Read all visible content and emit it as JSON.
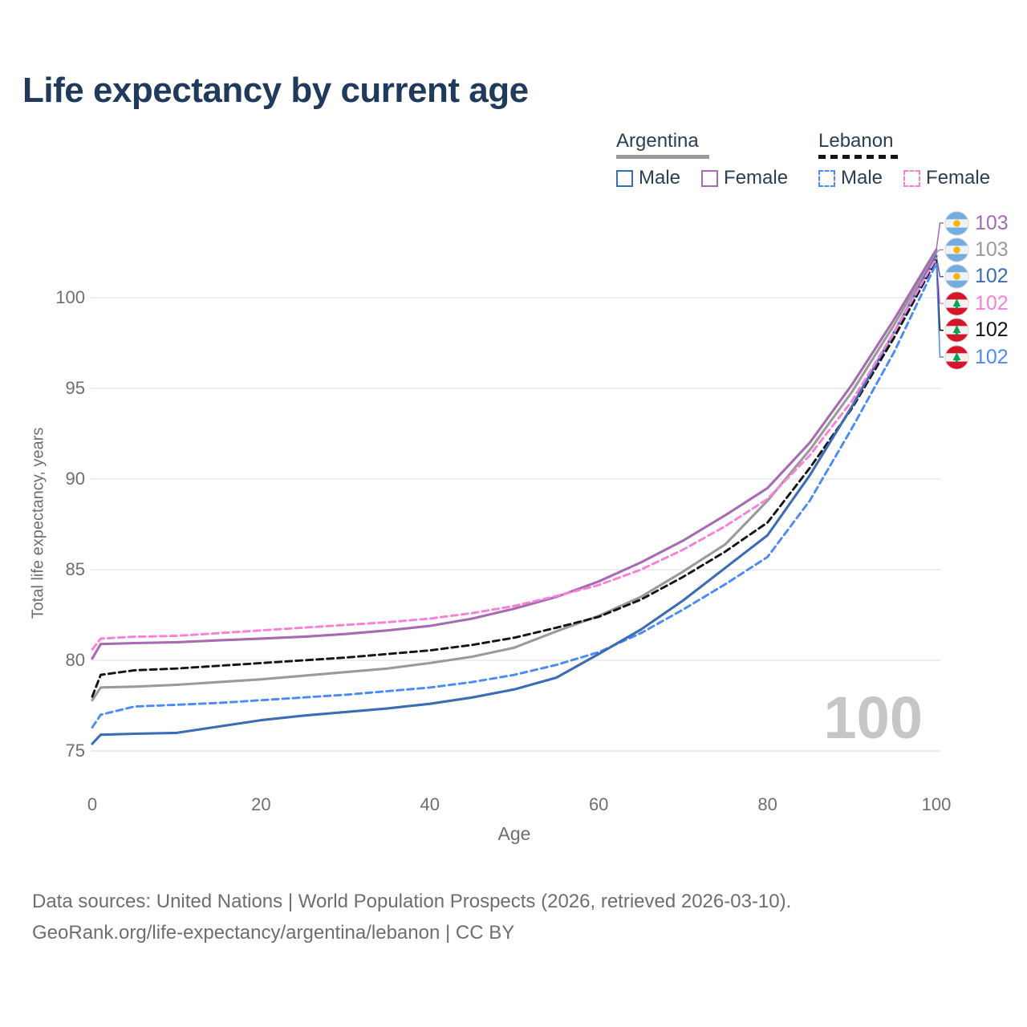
{
  "title": "Life expectancy by current age",
  "legend": {
    "groups": [
      {
        "label": "Argentina",
        "style": "solid",
        "underline_color": "#9a9a9a",
        "items": [
          {
            "label": "Male",
            "color": "#3c6cb4"
          },
          {
            "label": "Female",
            "color": "#a66bb0"
          }
        ]
      },
      {
        "label": "Lebanon",
        "style": "dashed",
        "underline_color": "#141414",
        "items": [
          {
            "label": "Male",
            "color": "#4b8af8"
          },
          {
            "label": "Female",
            "color": "#f97fd9"
          }
        ]
      }
    ]
  },
  "axes": {
    "xlabel": "Age",
    "ylabel": "Total life expectancy, years"
  },
  "watermark": "100",
  "footer": {
    "line1": "Data sources: United Nations | World Population Prospects (2026, retrieved 2026-03-10).",
    "line2": "GeoRank.org/life-expectancy/argentina/lebanon | CC BY"
  },
  "chart_data": {
    "type": "line",
    "title": "Life expectancy by current age",
    "xlabel": "Age",
    "ylabel": "Total life expectancy, years",
    "xlim": [
      0,
      100
    ],
    "ylim": [
      74,
      103.5
    ],
    "xticks": [
      0,
      20,
      40,
      60,
      80,
      100
    ],
    "yticks": [
      75,
      80,
      85,
      90,
      95,
      100
    ],
    "grid": true,
    "legend_position": "top-right",
    "x": [
      0,
      1,
      5,
      10,
      15,
      20,
      25,
      30,
      35,
      40,
      45,
      50,
      55,
      60,
      65,
      70,
      75,
      80,
      85,
      90,
      95,
      100
    ],
    "series": [
      {
        "name": "Argentina Female",
        "country": "Argentina",
        "sex": "Female",
        "color": "#a66bb0",
        "dash": false,
        "flag": "argentina",
        "end_label": "103",
        "values": [
          80.1,
          80.9,
          80.95,
          81.0,
          81.1,
          81.2,
          81.3,
          81.45,
          81.65,
          81.9,
          82.3,
          82.85,
          83.5,
          84.35,
          85.4,
          86.6,
          88.0,
          89.5,
          92.0,
          95.2,
          98.8,
          102.65
        ]
      },
      {
        "name": "Argentina Total",
        "country": "Argentina",
        "sex": "Total",
        "color": "#9a9a9a",
        "dash": false,
        "flag": "argentina",
        "end_label": "103",
        "values": [
          77.8,
          78.5,
          78.55,
          78.65,
          78.8,
          78.95,
          79.15,
          79.35,
          79.55,
          79.85,
          80.2,
          80.7,
          81.6,
          82.45,
          83.5,
          84.9,
          86.4,
          88.8,
          91.6,
          94.8,
          98.5,
          102.5
        ]
      },
      {
        "name": "Argentina Male",
        "country": "Argentina",
        "sex": "Male",
        "color": "#3c6cb4",
        "dash": false,
        "flag": "argentina",
        "end_label": "102",
        "values": [
          75.4,
          75.9,
          75.95,
          76.0,
          76.35,
          76.7,
          76.95,
          77.15,
          77.35,
          77.6,
          77.95,
          78.4,
          79.05,
          80.35,
          81.7,
          83.3,
          85.1,
          86.9,
          90.2,
          94.0,
          98.1,
          102.3
        ]
      },
      {
        "name": "Lebanon Female",
        "country": "Lebanon",
        "sex": "Female",
        "color": "#f97fd9",
        "dash": true,
        "flag": "lebanon",
        "end_label": "102",
        "values": [
          80.6,
          81.2,
          81.3,
          81.35,
          81.5,
          81.65,
          81.8,
          81.95,
          82.1,
          82.3,
          82.6,
          83.0,
          83.55,
          84.15,
          85.0,
          86.1,
          87.4,
          88.9,
          91.3,
          94.3,
          98.1,
          102.2
        ]
      },
      {
        "name": "Lebanon Total",
        "country": "Lebanon",
        "sex": "Total",
        "color": "#141414",
        "dash": true,
        "flag": "lebanon",
        "end_label": "102",
        "values": [
          78.0,
          79.2,
          79.45,
          79.55,
          79.7,
          79.85,
          80.0,
          80.15,
          80.35,
          80.55,
          80.85,
          81.25,
          81.8,
          82.4,
          83.35,
          84.6,
          86.0,
          87.6,
          90.6,
          93.9,
          97.8,
          102.1
        ]
      },
      {
        "name": "Lebanon Male",
        "country": "Lebanon",
        "sex": "Male",
        "color": "#4b8af8",
        "dash": true,
        "flag": "lebanon",
        "end_label": "102",
        "values": [
          76.3,
          77.0,
          77.45,
          77.55,
          77.65,
          77.8,
          77.95,
          78.1,
          78.3,
          78.5,
          78.8,
          79.2,
          79.75,
          80.45,
          81.5,
          82.8,
          84.2,
          85.7,
          88.8,
          92.8,
          97.0,
          101.9
        ]
      }
    ],
    "end_labels": [
      {
        "flag": "argentina",
        "value": "103",
        "color": "#a66bb0"
      },
      {
        "flag": "argentina",
        "value": "103",
        "color": "#9a9a9a"
      },
      {
        "flag": "argentina",
        "value": "102",
        "color": "#3c6cb4"
      },
      {
        "flag": "lebanon",
        "value": "102",
        "color": "#f97fd9"
      },
      {
        "flag": "lebanon",
        "value": "102",
        "color": "#141414"
      },
      {
        "flag": "lebanon",
        "value": "102",
        "color": "#4b8af8"
      }
    ],
    "flag_colors": {
      "argentina": {
        "band": "#74acdf",
        "middle": "#f2f2f2",
        "emblem": "#f6b40e"
      },
      "lebanon": {
        "band": "#d6152b",
        "middle": "#f2f2f2",
        "emblem": "#00a651"
      }
    }
  }
}
